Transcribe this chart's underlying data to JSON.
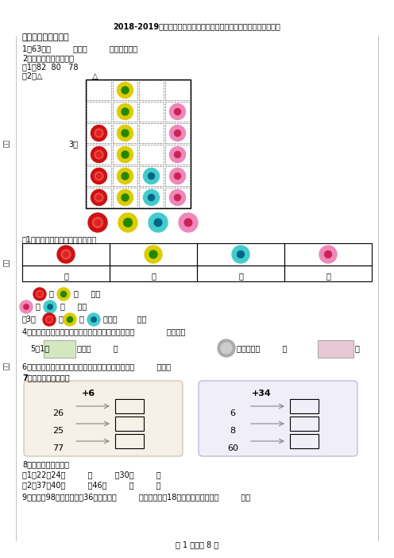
{
  "title": "2018-2019年重庆市永川区星湖小学校一年级下册数学期末测试含答案",
  "bg_color": "#ffffff",
  "section1_title": "一、想一想，填一填",
  "line1": "1．63是由         个一和         十个组成的．",
  "line2": "2．按规律填数或画图。",
  "line2a": "（1）82  80   78",
  "line2b": "（2）△                    △",
  "line3_label": "3．",
  "line3_sub1": "（1）数一数，把结果整理在表格。",
  "line3_sub2_a": "（2）    比    少    朵，",
  "line3_sub2_b": "    比    多    朵。",
  "line3_sub3": "（3）    、   和   一共有        朵。",
  "line4": "4．要统计小明发烧时一天内的体温变化情况，要选用             统计图。",
  "line5": "5．1张            可以换         个        ，还可以换         张        。",
  "line6": "6．把一个无盖的长方体纸箱的外面涂上油漆，需要涂         个面。",
  "line7": "7．算一算，填一填。",
  "add1_label": "+6",
  "add1_nums": [
    "26",
    "25",
    "77"
  ],
  "add2_label": "+34",
  "add2_nums": [
    "6",
    "8",
    "60"
  ],
  "add_bg1": "#f5f0e8",
  "add_bg2": "#f0eef8",
  "line8": "8．找规律，填数字。",
  "line8a": "（1）22，24，         ，         ，30，         ，",
  "line8b": "（2）37，40，         ，46，         ，         ，",
  "line9": "9．要植树98棵，已经植了36棵，还要植         棵。如果还剩18棵没有植，已经植了         棵。",
  "footer": "第 1 页，共 8 页",
  "left_labels": [
    "分数",
    "班级",
    "姓名"
  ],
  "grid_cols": 4,
  "grid_rows": 6,
  "table_cols": [
    "个",
    "个",
    "个",
    "个"
  ]
}
